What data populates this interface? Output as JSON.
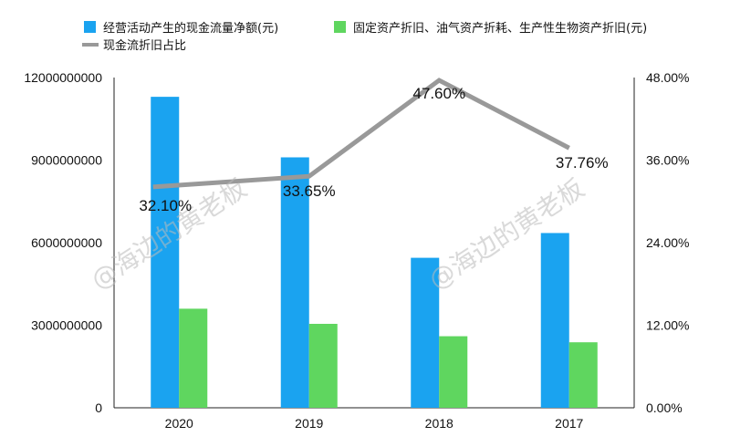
{
  "chart_data": {
    "type": "bar",
    "categories": [
      "2020",
      "2019",
      "2018",
      "2017"
    ],
    "series": [
      {
        "name": "经营活动产生的现金流量净额(元)",
        "kind": "bar",
        "axis": "left",
        "color": "#1aa3f0",
        "values": [
          11300000000,
          9100000000,
          5450000000,
          6350000000
        ]
      },
      {
        "name": "固定资产折旧、油气资产折耗、生产性生物资产折旧(元)",
        "kind": "bar",
        "axis": "left",
        "color": "#5fd65f",
        "values": [
          3600000000,
          3050000000,
          2600000000,
          2380000000
        ]
      },
      {
        "name": "现金流折旧占比",
        "kind": "line",
        "axis": "right",
        "color": "#999999",
        "values": [
          32.1,
          33.65,
          47.6,
          37.76
        ],
        "labels": [
          "32.10%",
          "33.65%",
          "47.60%",
          "37.76%"
        ]
      }
    ],
    "y_left": {
      "ylim": [
        0,
        12000000000
      ],
      "ticks": [
        "0",
        "3000000000",
        "6000000000",
        "9000000000",
        "12000000000"
      ]
    },
    "y_right": {
      "ylim": [
        0,
        48
      ],
      "ticks": [
        "0.00%",
        "12.00%",
        "24.00%",
        "36.00%",
        "48.00%"
      ]
    },
    "grid": false,
    "legend_position": "top-left"
  },
  "watermark": {
    "text": "@海边的黄老板"
  }
}
